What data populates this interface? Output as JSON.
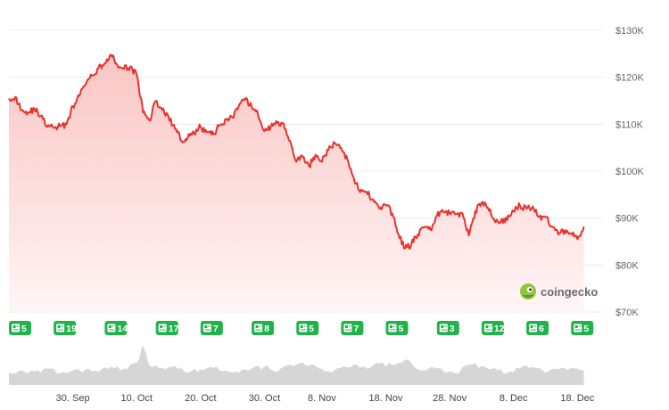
{
  "colors": {
    "line": "#e8322e",
    "area_top": "#f9c6c4",
    "area_bottom": "#fff5f5",
    "grid": "#ececec",
    "badge": "#22b24c",
    "volume": "#d6d6d6",
    "logo": "#8dc63f"
  },
  "watermark": {
    "label": "coingecko",
    "icon": "gecko-logo"
  },
  "badges": [
    {
      "icon": "news-icon",
      "value": 5,
      "date": "2025-09-20"
    },
    {
      "icon": "news-icon",
      "value": 19,
      "date": "2025-09-27"
    },
    {
      "icon": "news-icon",
      "value": 14,
      "date": "2025-10-05"
    },
    {
      "icon": "news-icon",
      "value": 17,
      "date": "2025-10-13"
    },
    {
      "icon": "news-icon",
      "value": 7,
      "date": "2025-10-20"
    },
    {
      "icon": "news-icon",
      "value": 8,
      "date": "2025-10-28"
    },
    {
      "icon": "news-icon",
      "value": 5,
      "date": "2025-11-04"
    },
    {
      "icon": "news-icon",
      "value": 7,
      "date": "2025-11-11"
    },
    {
      "icon": "news-icon",
      "value": 5,
      "date": "2025-11-18"
    },
    {
      "icon": "news-icon",
      "value": 3,
      "date": "2025-11-26"
    },
    {
      "icon": "news-icon",
      "value": 12,
      "date": "2025-12-03"
    },
    {
      "icon": "news-icon",
      "value": 6,
      "date": "2025-12-10"
    },
    {
      "icon": "news-icon",
      "value": 5,
      "date": "2025-12-17"
    }
  ],
  "chart_data": {
    "type": "area",
    "title": "",
    "xlabel": "",
    "ylabel": "",
    "grid": true,
    "y_axis_side": "right",
    "ylim": [
      70000,
      130000
    ],
    "y_ticks": [
      {
        "value": 70000,
        "label": "$70K"
      },
      {
        "value": 80000,
        "label": "$80K"
      },
      {
        "value": 90000,
        "label": "$90K"
      },
      {
        "value": 100000,
        "label": "$100K"
      },
      {
        "value": 110000,
        "label": "$110K"
      },
      {
        "value": 120000,
        "label": "$120K"
      },
      {
        "value": 130000,
        "label": "$130K"
      }
    ],
    "x_range": [
      "2025-09-20",
      "2025-12-22"
    ],
    "x_ticks": [
      {
        "date": "2025-09-30",
        "label": "30. Sep"
      },
      {
        "date": "2025-10-10",
        "label": "10. Oct"
      },
      {
        "date": "2025-10-20",
        "label": "20. Oct"
      },
      {
        "date": "2025-10-30",
        "label": "30. Oct"
      },
      {
        "date": "2025-11-08",
        "label": "8. Nov"
      },
      {
        "date": "2025-11-18",
        "label": "18. Nov"
      },
      {
        "date": "2025-11-28",
        "label": "28. Nov"
      },
      {
        "date": "2025-12-08",
        "label": "8. Dec"
      },
      {
        "date": "2025-12-18",
        "label": "18. Dec"
      }
    ],
    "series": [
      {
        "name": "",
        "points": [
          [
            "2025-09-20",
            115500
          ],
          [
            "2025-09-21",
            115800
          ],
          [
            "2025-09-22",
            113000
          ],
          [
            "2025-09-23",
            112500
          ],
          [
            "2025-09-24",
            113200
          ],
          [
            "2025-09-25",
            111800
          ],
          [
            "2025-09-26",
            109500
          ],
          [
            "2025-09-27",
            109200
          ],
          [
            "2025-09-28",
            109600
          ],
          [
            "2025-09-29",
            110000
          ],
          [
            "2025-09-30",
            113800
          ],
          [
            "2025-10-01",
            116000
          ],
          [
            "2025-10-02",
            118500
          ],
          [
            "2025-10-03",
            120300
          ],
          [
            "2025-10-04",
            122000
          ],
          [
            "2025-10-05",
            123000
          ],
          [
            "2025-10-06",
            124800
          ],
          [
            "2025-10-07",
            122500
          ],
          [
            "2025-10-08",
            121800
          ],
          [
            "2025-10-09",
            122300
          ],
          [
            "2025-10-10",
            120500
          ],
          [
            "2025-10-11",
            112500
          ],
          [
            "2025-10-12",
            110800
          ],
          [
            "2025-10-13",
            115000
          ],
          [
            "2025-10-14",
            113000
          ],
          [
            "2025-10-15",
            111500
          ],
          [
            "2025-10-16",
            109000
          ],
          [
            "2025-10-17",
            106500
          ],
          [
            "2025-10-18",
            107200
          ],
          [
            "2025-10-19",
            108000
          ],
          [
            "2025-10-20",
            109500
          ],
          [
            "2025-10-21",
            108300
          ],
          [
            "2025-10-22",
            107800
          ],
          [
            "2025-10-23",
            109800
          ],
          [
            "2025-10-24",
            111000
          ],
          [
            "2025-10-25",
            111500
          ],
          [
            "2025-10-26",
            114000
          ],
          [
            "2025-10-27",
            115200
          ],
          [
            "2025-10-28",
            113800
          ],
          [
            "2025-10-29",
            112000
          ],
          [
            "2025-10-30",
            108500
          ],
          [
            "2025-10-31",
            109500
          ],
          [
            "2025-11-01",
            110300
          ],
          [
            "2025-11-02",
            110200
          ],
          [
            "2025-11-03",
            106500
          ],
          [
            "2025-11-04",
            102000
          ],
          [
            "2025-11-05",
            103000
          ],
          [
            "2025-11-06",
            101000
          ],
          [
            "2025-11-07",
            103500
          ],
          [
            "2025-11-08",
            102000
          ],
          [
            "2025-11-09",
            104500
          ],
          [
            "2025-11-10",
            106000
          ],
          [
            "2025-11-11",
            105000
          ],
          [
            "2025-11-12",
            102500
          ],
          [
            "2025-11-13",
            98500
          ],
          [
            "2025-11-14",
            95500
          ],
          [
            "2025-11-15",
            95600
          ],
          [
            "2025-11-16",
            94000
          ],
          [
            "2025-11-17",
            92000
          ],
          [
            "2025-11-18",
            92800
          ],
          [
            "2025-11-19",
            91000
          ],
          [
            "2025-11-20",
            86500
          ],
          [
            "2025-11-21",
            83500
          ],
          [
            "2025-11-22",
            84500
          ],
          [
            "2025-11-23",
            86500
          ],
          [
            "2025-11-24",
            88000
          ],
          [
            "2025-11-25",
            87500
          ],
          [
            "2025-11-26",
            90500
          ],
          [
            "2025-11-27",
            91200
          ],
          [
            "2025-11-28",
            91000
          ],
          [
            "2025-11-29",
            90800
          ],
          [
            "2025-11-30",
            91000
          ],
          [
            "2025-12-01",
            86300
          ],
          [
            "2025-12-02",
            91500
          ],
          [
            "2025-12-03",
            93300
          ],
          [
            "2025-12-04",
            92200
          ],
          [
            "2025-12-05",
            89500
          ],
          [
            "2025-12-06",
            89300
          ],
          [
            "2025-12-07",
            89600
          ],
          [
            "2025-12-08",
            91500
          ],
          [
            "2025-12-09",
            92700
          ],
          [
            "2025-12-10",
            92000
          ],
          [
            "2025-12-11",
            92500
          ],
          [
            "2025-12-12",
            90300
          ],
          [
            "2025-12-13",
            90200
          ],
          [
            "2025-12-14",
            88200
          ],
          [
            "2025-12-15",
            86500
          ],
          [
            "2025-12-16",
            87400
          ],
          [
            "2025-12-17",
            86700
          ],
          [
            "2025-12-18",
            85500
          ],
          [
            "2025-12-19",
            88200
          ]
        ]
      }
    ],
    "volume": {
      "name": "",
      "unit": "relative",
      "points": [
        [
          "2025-09-20",
          0.3
        ],
        [
          "2025-09-22",
          0.36
        ],
        [
          "2025-09-24",
          0.33
        ],
        [
          "2025-09-26",
          0.4
        ],
        [
          "2025-09-28",
          0.28
        ],
        [
          "2025-09-30",
          0.35
        ],
        [
          "2025-10-02",
          0.38
        ],
        [
          "2025-10-04",
          0.32
        ],
        [
          "2025-10-06",
          0.45
        ],
        [
          "2025-10-08",
          0.4
        ],
        [
          "2025-10-10",
          0.55
        ],
        [
          "2025-10-11",
          0.95
        ],
        [
          "2025-10-12",
          0.48
        ],
        [
          "2025-10-14",
          0.42
        ],
        [
          "2025-10-16",
          0.46
        ],
        [
          "2025-10-18",
          0.3
        ],
        [
          "2025-10-20",
          0.38
        ],
        [
          "2025-10-22",
          0.42
        ],
        [
          "2025-10-24",
          0.35
        ],
        [
          "2025-10-26",
          0.3
        ],
        [
          "2025-10-28",
          0.4
        ],
        [
          "2025-10-30",
          0.45
        ],
        [
          "2025-11-01",
          0.32
        ],
        [
          "2025-11-03",
          0.5
        ],
        [
          "2025-11-05",
          0.55
        ],
        [
          "2025-11-07",
          0.46
        ],
        [
          "2025-11-09",
          0.34
        ],
        [
          "2025-11-11",
          0.42
        ],
        [
          "2025-11-13",
          0.5
        ],
        [
          "2025-11-15",
          0.4
        ],
        [
          "2025-11-17",
          0.52
        ],
        [
          "2025-11-19",
          0.48
        ],
        [
          "2025-11-21",
          0.62
        ],
        [
          "2025-11-23",
          0.38
        ],
        [
          "2025-11-25",
          0.44
        ],
        [
          "2025-11-27",
          0.34
        ],
        [
          "2025-11-29",
          0.28
        ],
        [
          "2025-12-01",
          0.5
        ],
        [
          "2025-12-03",
          0.46
        ],
        [
          "2025-12-05",
          0.42
        ],
        [
          "2025-12-07",
          0.3
        ],
        [
          "2025-12-09",
          0.4
        ],
        [
          "2025-12-11",
          0.44
        ],
        [
          "2025-12-13",
          0.3
        ],
        [
          "2025-12-15",
          0.38
        ],
        [
          "2025-12-17",
          0.42
        ],
        [
          "2025-12-19",
          0.36
        ]
      ]
    }
  }
}
